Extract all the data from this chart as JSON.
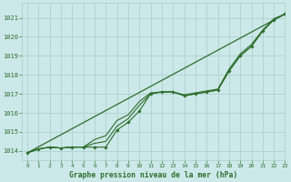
{
  "background_color": "#cce8e8",
  "grid_color": "#aacccc",
  "line_color": "#2d6e2d",
  "marker_color": "#2d6e2d",
  "title": "Graphe pression niveau de la mer (hPa)",
  "ylim": [
    1013.5,
    1021.8
  ],
  "xlim": [
    -0.5,
    23
  ],
  "yticks": [
    1014,
    1015,
    1016,
    1017,
    1018,
    1019,
    1020,
    1021
  ],
  "xticks": [
    0,
    1,
    2,
    3,
    4,
    5,
    6,
    7,
    8,
    9,
    10,
    11,
    12,
    13,
    14,
    15,
    16,
    17,
    18,
    19,
    20,
    21,
    22,
    23
  ],
  "trend_x": [
    0,
    23
  ],
  "trend_y": [
    1013.9,
    1021.2
  ],
  "series_main": {
    "x": [
      0,
      1,
      2,
      3,
      4,
      5,
      6,
      7,
      8,
      9,
      10,
      11,
      12,
      13,
      14,
      15,
      16,
      17,
      18,
      19,
      20,
      21,
      22,
      23
    ],
    "y": [
      1013.9,
      1014.1,
      1014.2,
      1014.15,
      1014.2,
      1014.2,
      1014.2,
      1014.2,
      1015.1,
      1015.5,
      1016.1,
      1017.0,
      1017.1,
      1017.1,
      1016.9,
      1017.0,
      1017.1,
      1017.2,
      1018.2,
      1019.0,
      1019.5,
      1020.3,
      1020.9,
      1021.2
    ]
  },
  "series_alt1": {
    "x": [
      0,
      1,
      2,
      3,
      4,
      5,
      6,
      7,
      8,
      9,
      10,
      11,
      12,
      13,
      14,
      15,
      16,
      17,
      18,
      19,
      20,
      21,
      22,
      23
    ],
    "y": [
      1013.9,
      1014.1,
      1014.2,
      1014.15,
      1014.2,
      1014.2,
      1014.4,
      1014.5,
      1015.3,
      1015.7,
      1016.4,
      1017.0,
      1017.1,
      1017.1,
      1016.9,
      1017.0,
      1017.1,
      1017.2,
      1018.2,
      1019.0,
      1019.5,
      1020.3,
      1020.9,
      1021.2
    ]
  },
  "series_alt2": {
    "x": [
      0,
      1,
      2,
      3,
      4,
      5,
      6,
      7,
      8,
      9,
      10,
      11,
      12,
      13,
      14,
      15,
      16,
      17,
      18,
      19,
      20,
      21,
      22,
      23
    ],
    "y": [
      1013.9,
      1014.1,
      1014.2,
      1014.15,
      1014.2,
      1014.2,
      1014.6,
      1014.8,
      1015.6,
      1015.9,
      1016.6,
      1017.05,
      1017.1,
      1017.1,
      1016.95,
      1017.05,
      1017.15,
      1017.25,
      1018.3,
      1019.1,
      1019.6,
      1020.35,
      1020.95,
      1021.2
    ]
  }
}
